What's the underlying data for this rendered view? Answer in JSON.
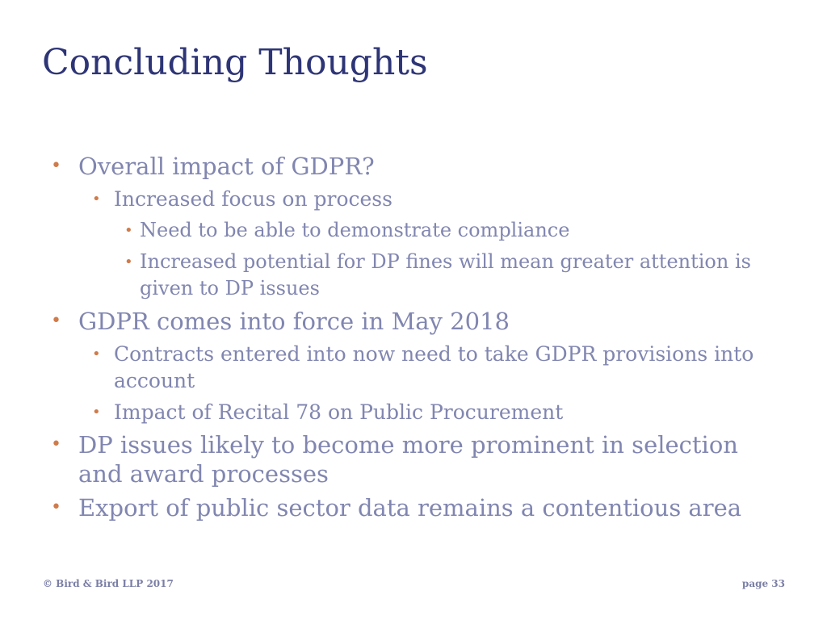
{
  "title": "Concluding Thoughts",
  "bullets": [
    {
      "level": 1,
      "text": "Overall impact of GDPR?"
    },
    {
      "level": 2,
      "text": "Increased focus on process"
    },
    {
      "level": 3,
      "text": "Need to be able to demonstrate compliance"
    },
    {
      "level": 3,
      "text": "Increased potential for DP fines will mean greater attention is given to DP issues"
    },
    {
      "level": 1,
      "text": "GDPR comes into force in May 2018"
    },
    {
      "level": 2,
      "text": "Contracts  entered into now need to take GDPR provisions into  account"
    },
    {
      "level": 2,
      "text": "Impact of Recital 78 on Public Procurement"
    },
    {
      "level": 1,
      "text": "DP issues likely to become  more  prominent in selection and award processes"
    },
    {
      "level": 1,
      "text": "Export of public sector data remains a contentious area"
    }
  ],
  "bullet_glyph": "•",
  "footer": {
    "copyright": "© Bird & Bird LLP 2017",
    "page": "page 33"
  },
  "colors": {
    "title": "#2e3576",
    "body_text": "#8186b0",
    "bullet": "#d07b4a",
    "footer": "#7b7fa6"
  }
}
